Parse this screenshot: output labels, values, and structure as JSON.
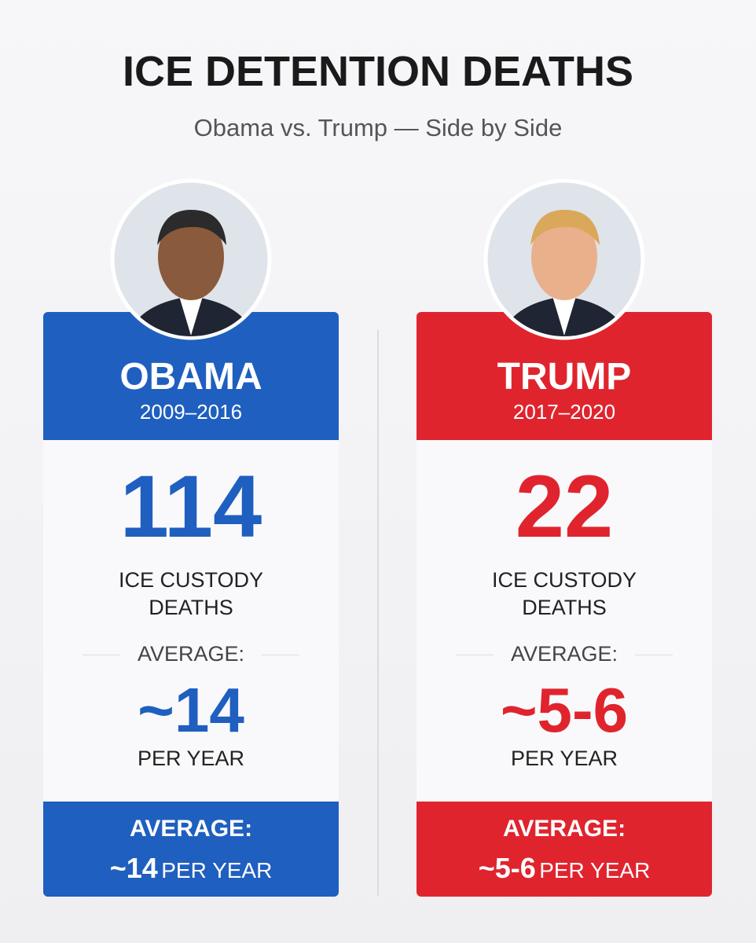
{
  "header": {
    "title": "ICE DETENTION DEATHS",
    "subtitle": "Obama vs. Trump — Side by Side"
  },
  "panels": [
    {
      "name": "OBAMA",
      "years": "2009–2016",
      "color": "#1f5fbf",
      "total": 114,
      "total_label": [
        "ICE CUSTODY",
        "DEATHS"
      ],
      "average_label": "AVERAGE:",
      "average": "~14",
      "average_unit": "PER YEAR",
      "footer_label": "AVERAGE:",
      "footer_value": "~14",
      "footer_unit": "PER YEAR"
    },
    {
      "name": "TRUMP",
      "years": "2017–2020",
      "color": "#e0242e",
      "total": 22,
      "total_label": [
        "ICE CUSTODY",
        "DEATHS"
      ],
      "average_label": "AVERAGE:",
      "average": "~5-6",
      "average_unit": "PER YEAR",
      "footer_label": "AVERAGE:",
      "footer_value": "~5-6",
      "footer_unit": "PER YEAR"
    }
  ]
}
